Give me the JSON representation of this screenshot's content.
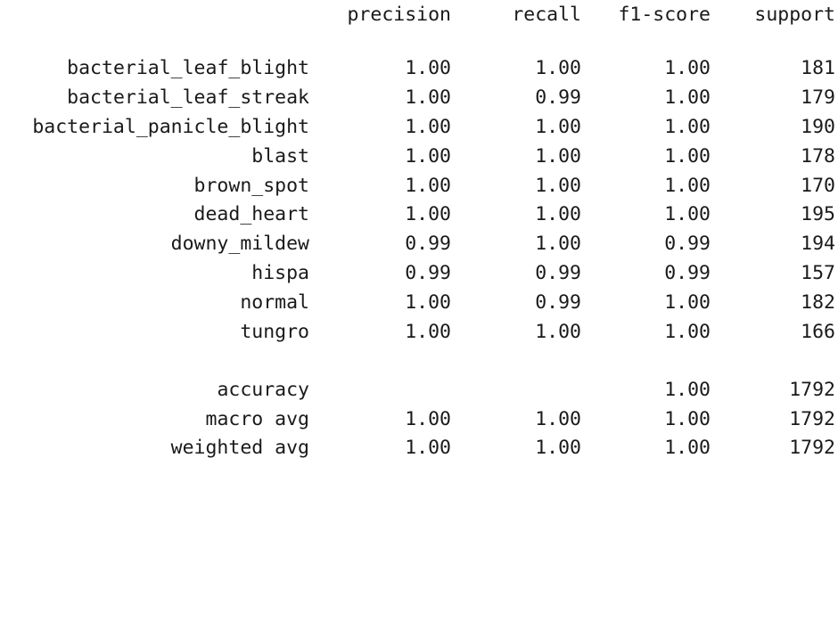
{
  "header": {
    "precision": "precision",
    "recall": "recall",
    "f1": "f1-score",
    "support": "support"
  },
  "classes": [
    {
      "label": "bacterial_leaf_blight",
      "precision": "1.00",
      "recall": "1.00",
      "f1": "1.00",
      "support": "181"
    },
    {
      "label": "bacterial_leaf_streak",
      "precision": "1.00",
      "recall": "0.99",
      "f1": "1.00",
      "support": "179"
    },
    {
      "label": "bacterial_panicle_blight",
      "precision": "1.00",
      "recall": "1.00",
      "f1": "1.00",
      "support": "190"
    },
    {
      "label": "blast",
      "precision": "1.00",
      "recall": "1.00",
      "f1": "1.00",
      "support": "178"
    },
    {
      "label": "brown_spot",
      "precision": "1.00",
      "recall": "1.00",
      "f1": "1.00",
      "support": "170"
    },
    {
      "label": "dead_heart",
      "precision": "1.00",
      "recall": "1.00",
      "f1": "1.00",
      "support": "195"
    },
    {
      "label": "downy_mildew",
      "precision": "0.99",
      "recall": "1.00",
      "f1": "0.99",
      "support": "194"
    },
    {
      "label": "hispa",
      "precision": "0.99",
      "recall": "0.99",
      "f1": "0.99",
      "support": "157"
    },
    {
      "label": "normal",
      "precision": "1.00",
      "recall": "0.99",
      "f1": "1.00",
      "support": "182"
    },
    {
      "label": "tungro",
      "precision": "1.00",
      "recall": "1.00",
      "f1": "1.00",
      "support": "166"
    }
  ],
  "summary": {
    "accuracy": {
      "label": "accuracy",
      "f1": "1.00",
      "support": "1792"
    },
    "macro": {
      "label": "macro avg",
      "precision": "1.00",
      "recall": "1.00",
      "f1": "1.00",
      "support": "1792"
    },
    "weighted": {
      "label": "weighted avg",
      "precision": "1.00",
      "recall": "1.00",
      "f1": "1.00",
      "support": "1792"
    }
  }
}
